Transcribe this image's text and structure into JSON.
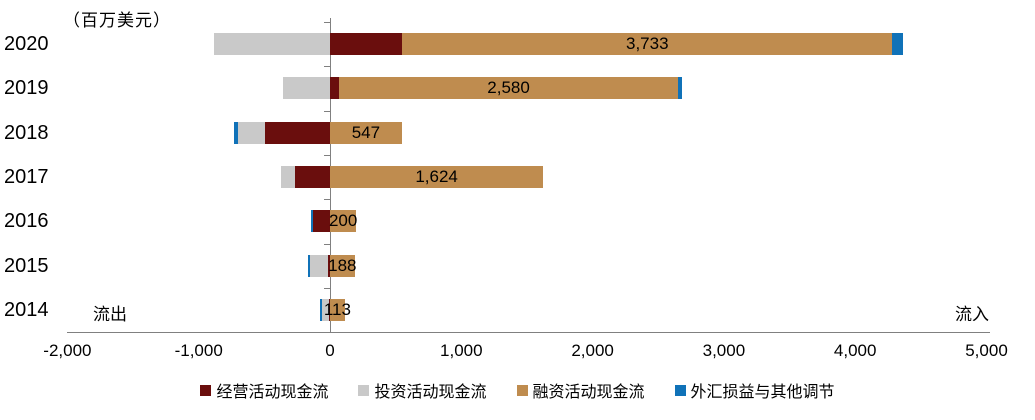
{
  "chart_data": {
    "type": "bar",
    "orientation": "horizontal-stacked",
    "unit_label": "（百万美元）",
    "outflow_label": "流出",
    "inflow_label": "流入",
    "categories": [
      "2020",
      "2019",
      "2018",
      "2017",
      "2016",
      "2015",
      "2014"
    ],
    "series": [
      {
        "name": "经营活动现金流",
        "color": "#6A0E0D",
        "values": [
          550,
          70,
          -495,
          -265,
          -130,
          -15,
          -10
        ]
      },
      {
        "name": "投资活动现金流",
        "color": "#C9C9C9",
        "values": [
          -880,
          -355,
          -205,
          -105,
          0,
          -135,
          -50
        ]
      },
      {
        "name": "融资活动现金流",
        "color": "#BF8C4F",
        "values": [
          3733,
          2580,
          547,
          1624,
          200,
          188,
          113
        ]
      },
      {
        "name": "外汇损益与其他调节",
        "color": "#1072B8",
        "values": [
          80,
          30,
          -30,
          0,
          -15,
          -15,
          -15
        ]
      }
    ],
    "bar_labels": {
      "series": "融资活动现金流",
      "values": [
        "3,733",
        "2,580",
        "547",
        "1,624",
        "200",
        "188",
        "113"
      ]
    },
    "xlim": [
      -2000,
      5000
    ],
    "x_ticks": [
      "-2,000",
      "-1,000",
      "0",
      "1,000",
      "2,000",
      "3,000",
      "4,000",
      "5,000"
    ],
    "x_tick_values": [
      -2000,
      -1000,
      0,
      1000,
      2000,
      3000,
      4000,
      5000
    ],
    "legend_position": "bottom",
    "grid": false,
    "axis_color": "#808080"
  }
}
